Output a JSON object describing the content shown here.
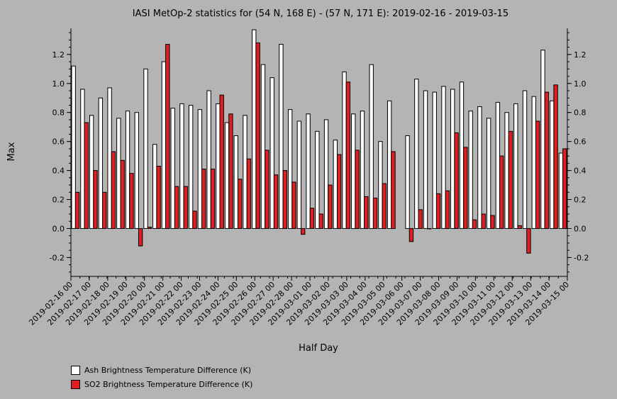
{
  "chart_data": {
    "type": "bar",
    "title": "IASI MetOp-2 statistics for (54 N, 168 E) - (57 N, 171 E): 2019-02-16 - 2019-03-15",
    "xlabel": "Half Day",
    "ylabel": "Max",
    "ylim": [
      -0.33,
      1.38
    ],
    "yticks": [
      -0.2,
      0.0,
      0.2,
      0.4,
      0.6,
      0.8,
      1.0,
      1.2
    ],
    "ytick_labels": [
      "-0.2",
      "0.0",
      "0.2",
      "0.4",
      "0.6",
      "0.8",
      "1.0",
      "1.2"
    ],
    "xtick_labels": [
      "2019-02-16 00",
      "2019-02-17 00",
      "2019-02-18 00",
      "2019-02-19 00",
      "2019-02-20 00",
      "2019-02-21 00",
      "2019-02-22 00",
      "2019-02-23 00",
      "2019-02-24 00",
      "2019-02-25 00",
      "2019-02-26 00",
      "2019-02-27 00",
      "2019-02-28 00",
      "2019-03-01 00",
      "2019-03-02 00",
      "2019-03-03 00",
      "2019-03-04 00",
      "2019-03-05 00",
      "2019-03-06 00",
      "2019-03-07 00",
      "2019-03-08 00",
      "2019-03-09 00",
      "2019-03-10 00",
      "2019-03-11 00",
      "2019-03-12 00",
      "2019-03-13 00",
      "2019-03-14 00",
      "2019-03-15 00"
    ],
    "grid": false,
    "legend_position": "bottom-left",
    "series": [
      {
        "name": "Ash Brightness Temperature Difference (K)",
        "color": "#ffffff",
        "values": [
          1.12,
          0.96,
          0.78,
          0.9,
          0.97,
          0.76,
          0.81,
          0.8,
          1.1,
          0.58,
          1.15,
          0.83,
          0.86,
          0.85,
          0.82,
          0.95,
          0.86,
          0.73,
          0.64,
          0.78,
          1.37,
          1.13,
          1.04,
          1.27,
          0.82,
          0.74,
          0.79,
          0.67,
          0.75,
          0.61,
          1.08,
          0.79,
          0.81,
          1.13,
          0.6,
          0.88,
          null,
          0.64,
          1.03,
          0.95,
          0.94,
          0.98,
          0.96,
          1.01,
          0.81,
          0.84,
          0.76,
          0.87,
          0.8,
          0.86,
          0.95,
          0.91,
          1.23,
          0.88,
          0.52
        ]
      },
      {
        "name": "SO2 Brightness Temperature Difference (K)",
        "color": "#e02020",
        "values": [
          0.25,
          0.73,
          0.4,
          0.25,
          0.53,
          0.47,
          0.38,
          -0.12,
          0.01,
          0.43,
          1.27,
          0.29,
          0.29,
          0.12,
          0.41,
          0.41,
          0.92,
          0.79,
          0.34,
          0.48,
          1.28,
          0.54,
          0.37,
          0.4,
          0.32,
          -0.04,
          0.14,
          0.1,
          0.3,
          0.51,
          1.01,
          0.54,
          0.22,
          0.21,
          0.31,
          0.53,
          null,
          -0.09,
          0.13,
          0.0,
          0.24,
          0.26,
          0.66,
          0.56,
          0.06,
          0.1,
          0.09,
          0.5,
          0.67,
          0.02,
          -0.17,
          0.74,
          0.94,
          0.99,
          0.55
        ]
      }
    ]
  }
}
